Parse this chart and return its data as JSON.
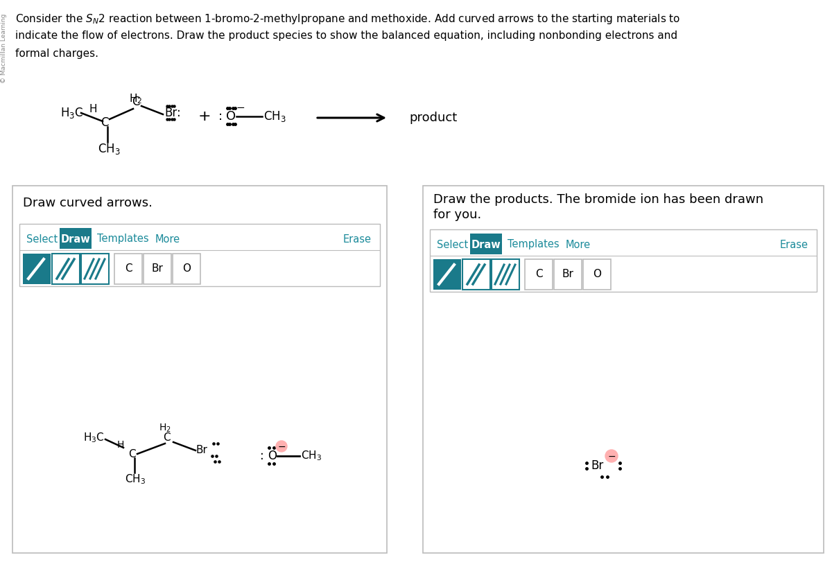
{
  "bg_color": "#ffffff",
  "teal_color": "#1a8a9a",
  "teal_dark": "#1a7a8a",
  "box_border_color": "#bbbbbb",
  "text_color": "#000000",
  "pink_color": "#ffb0b0",
  "panel1_title": "Draw curved arrows.",
  "panel2_line1": "Draw the products. The bromide ion has been drawn",
  "panel2_line2": "for you.",
  "question_lines": [
    "Consider the $S_N$2 reaction between 1-bromo-2-methylpropane and methoxide. Add curved arrows to the starting materials to",
    "indicate the flow of electrons. Draw the product species to show the balanced equation, including nonbonding electrons and",
    "formal charges."
  ]
}
